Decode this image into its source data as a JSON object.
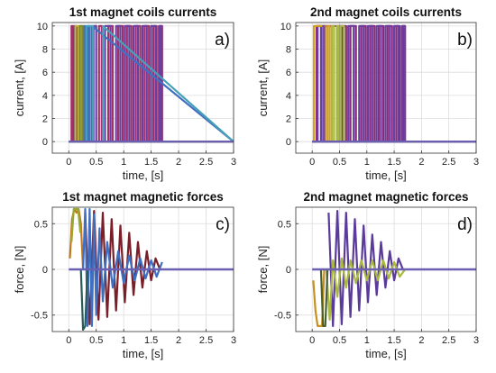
{
  "colors": {
    "grid": "#dcdcdc",
    "axis": "#333333",
    "zero": "#6a5fb0"
  },
  "chart_data": [
    {
      "type": "line",
      "title": "1st magnet coils currents",
      "panel_label": "a)",
      "xlabel": "time, [s]",
      "ylabel": "current, [A]",
      "xlim": [
        -0.3,
        3
      ],
      "ylim": [
        -1,
        10.3
      ],
      "xticks": [
        0,
        0.5,
        1,
        1.5,
        2,
        2.5,
        3
      ],
      "xticklabels": [
        "0",
        "0.5",
        "1",
        "1.5",
        "2",
        "2.5",
        "3"
      ],
      "yticks": [
        0,
        2,
        4,
        6,
        8,
        10
      ],
      "yticklabels": [
        "0",
        "2",
        "4",
        "6",
        "8",
        "10"
      ],
      "grid": true,
      "series": [
        {
          "color": "#a0306a",
          "x": [
            0,
            0.05,
            0.05,
            0.08,
            0.08,
            0.55,
            0.55,
            0.6,
            0.6,
            0.72,
            0.72,
            0.8,
            0.8,
            0.9,
            0.9,
            0.98,
            0.98,
            1.06,
            1.06,
            1.14,
            1.14,
            1.22,
            1.22,
            1.3,
            1.3,
            1.38,
            1.38,
            1.46,
            1.46,
            1.54,
            1.54,
            1.6,
            1.6,
            1.66,
            1.66,
            1.7,
            1.7,
            3
          ],
          "y": [
            0,
            0,
            10,
            10,
            0,
            0,
            10,
            10,
            0,
            0,
            10,
            10,
            0,
            0,
            10,
            10,
            0,
            0,
            10,
            10,
            0,
            0,
            10,
            10,
            0,
            0,
            10,
            10,
            0,
            0,
            10,
            10,
            0,
            0,
            10,
            10,
            0,
            0
          ]
        },
        {
          "color": "#6a3fa0",
          "x": [
            0,
            0.1,
            0.1,
            0.14,
            0.14,
            0.45,
            0.45,
            0.5,
            0.5,
            0.66,
            0.66,
            0.76,
            0.76,
            0.86,
            0.86,
            0.94,
            0.94,
            1.02,
            1.02,
            1.1,
            1.1,
            1.18,
            1.18,
            1.26,
            1.26,
            1.34,
            1.34,
            1.42,
            1.42,
            1.5,
            1.5,
            1.58,
            1.58,
            1.64,
            1.64,
            1.69,
            1.69,
            3
          ],
          "y": [
            0,
            0,
            10,
            10,
            0,
            0,
            10,
            10,
            0,
            0,
            10,
            10,
            0,
            0,
            10,
            10,
            0,
            0,
            10,
            10,
            0,
            0,
            10,
            10,
            0,
            0,
            10,
            10,
            0,
            0,
            10,
            10,
            0,
            0,
            10,
            10,
            0,
            0
          ]
        },
        {
          "color": "#c8b030",
          "x": [
            0,
            0.12,
            0.12,
            0.18,
            0.18,
            0.22,
            0.22,
            0.26,
            0.26,
            3
          ],
          "y": [
            0,
            0,
            10,
            10,
            0,
            0,
            10,
            10,
            0,
            0
          ]
        },
        {
          "color": "#4070c0",
          "x": [
            0,
            0.28,
            0.28,
            0.3,
            0.3,
            0.35,
            0.35,
            0.38,
            0.38,
            0.42,
            0.42,
            3
          ],
          "y": [
            0,
            0,
            10,
            10,
            0,
            0,
            10,
            10,
            0,
            0,
            10,
            0
          ]
        },
        {
          "color": "#48a0b8",
          "x": [
            0,
            0.32,
            0.32,
            0.44,
            0.44,
            0.62,
            0.62,
            3
          ],
          "y": [
            0,
            0,
            10,
            10,
            0,
            0,
            10,
            0
          ]
        },
        {
          "color": "#7a8a30",
          "x": [
            0,
            0.2,
            0.2,
            0.25,
            0.25,
            3
          ],
          "y": [
            0,
            0,
            10,
            10,
            0,
            0
          ]
        }
      ]
    },
    {
      "type": "line",
      "title": "2nd magnet coils currents",
      "panel_label": "b)",
      "xlabel": "time, [s]",
      "ylabel": "current, [A]",
      "xlim": [
        -0.3,
        3
      ],
      "ylim": [
        -1,
        10.3
      ],
      "xticks": [
        0,
        0.5,
        1,
        1.5,
        2,
        2.5,
        3
      ],
      "xticklabels": [
        "0",
        "0.5",
        "1",
        "1.5",
        "2",
        "2.5",
        "3"
      ],
      "yticks": [
        0,
        2,
        4,
        6,
        8,
        10
      ],
      "yticklabels": [
        "0",
        "2",
        "4",
        "6",
        "8",
        "10"
      ],
      "grid": true,
      "series": [
        {
          "color": "#8a2a7a",
          "x": [
            0,
            0.08,
            0.08,
            0.62,
            0.62,
            0.7,
            0.7,
            0.8,
            0.8,
            0.9,
            0.9,
            0.98,
            0.98,
            1.06,
            1.06,
            1.14,
            1.14,
            1.22,
            1.22,
            1.3,
            1.3,
            1.38,
            1.38,
            1.46,
            1.46,
            1.54,
            1.54,
            1.6,
            1.6,
            1.66,
            1.66,
            1.7,
            1.7,
            3
          ],
          "y": [
            0,
            0,
            10,
            10,
            0,
            0,
            10,
            10,
            0,
            0,
            10,
            10,
            0,
            0,
            10,
            10,
            0,
            0,
            10,
            10,
            0,
            0,
            10,
            10,
            0,
            0,
            10,
            10,
            0,
            0,
            10,
            10,
            0,
            0
          ]
        },
        {
          "color": "#6a3fa0",
          "x": [
            0,
            0.1,
            0.1,
            0.16,
            0.16,
            0.5,
            0.5,
            0.55,
            0.55,
            0.66,
            0.66,
            0.76,
            0.76,
            0.86,
            0.86,
            0.94,
            0.94,
            1.02,
            1.02,
            1.1,
            1.1,
            1.18,
            1.18,
            1.26,
            1.26,
            1.34,
            1.34,
            1.42,
            1.42,
            1.5,
            1.5,
            1.58,
            1.58,
            1.64,
            1.64,
            1.69,
            1.69,
            3
          ],
          "y": [
            0,
            0,
            10,
            10,
            0,
            0,
            10,
            10,
            0,
            0,
            10,
            10,
            0,
            0,
            10,
            10,
            0,
            0,
            10,
            10,
            0,
            0,
            10,
            10,
            0,
            0,
            10,
            10,
            0,
            0,
            10,
            10,
            0,
            0,
            10,
            10,
            0,
            0
          ]
        },
        {
          "color": "#d0a020",
          "x": [
            0,
            0.03,
            0.03,
            0.24,
            0.24,
            0.28,
            0.28,
            0.32,
            0.32,
            3
          ],
          "y": [
            0,
            0,
            10,
            10,
            0,
            0,
            10,
            10,
            0,
            0
          ]
        },
        {
          "color": "#a8b840",
          "x": [
            0,
            0.36,
            0.36,
            0.4,
            0.4,
            0.45,
            0.45,
            0.48,
            0.48,
            0.52,
            0.52,
            0.58,
            0.58,
            3
          ],
          "y": [
            0,
            0,
            10,
            10,
            0,
            0,
            10,
            10,
            0,
            0,
            10,
            10,
            0,
            0
          ]
        },
        {
          "color": "#7a4aa8",
          "x": [
            0,
            0.2,
            0.2,
            0.22,
            0.22,
            3
          ],
          "y": [
            0,
            0,
            10,
            10,
            0,
            0
          ]
        }
      ]
    },
    {
      "type": "line",
      "title": "1st magnet magnetic forces",
      "panel_label": "c)",
      "xlabel": "time, [s]",
      "ylabel": "force, [N]",
      "xlim": [
        -0.3,
        3
      ],
      "ylim": [
        -0.68,
        0.68
      ],
      "xticks": [
        0,
        0.5,
        1,
        1.5,
        2,
        2.5,
        3
      ],
      "xticklabels": [
        "0",
        "0.5",
        "1",
        "1.5",
        "2",
        "2.5",
        "3"
      ],
      "yticks": [
        -0.5,
        0,
        0.5
      ],
      "yticklabels": [
        "-0.5",
        "0",
        "0.5"
      ],
      "grid": true,
      "series": [
        {
          "color": "#7a1f2a",
          "x": [
            0.3,
            0.38,
            0.46,
            0.54,
            0.62,
            0.7,
            0.78,
            0.86,
            0.94,
            1.02,
            1.1,
            1.18,
            1.26,
            1.34,
            1.42,
            1.5,
            1.58,
            1.66
          ],
          "y": [
            0.62,
            -0.6,
            0.64,
            -0.55,
            0.62,
            -0.52,
            0.55,
            -0.45,
            0.48,
            -0.36,
            0.4,
            -0.28,
            0.3,
            -0.2,
            0.2,
            -0.12,
            0.12,
            0
          ]
        },
        {
          "color": "#c07820",
          "x": [
            0.02,
            0.06,
            0.1,
            0.14,
            0.18,
            0.22,
            0.26
          ],
          "y": [
            0.12,
            0.55,
            0.66,
            0.62,
            0.66,
            0.5,
            0
          ]
        },
        {
          "color": "#3f6fc0",
          "x": [
            0.26,
            0.3,
            0.34,
            0.38,
            0.42,
            0.46,
            0.5,
            0.56,
            0.62,
            0.7,
            0.8,
            0.9,
            1.0,
            1.1,
            1.2,
            1.3,
            1.4,
            1.5,
            1.6,
            1.7
          ],
          "y": [
            0,
            0.66,
            -0.62,
            0.66,
            -0.62,
            0.6,
            -0.5,
            0.45,
            -0.35,
            0.3,
            -0.2,
            0.2,
            -0.15,
            0.15,
            -0.12,
            0.12,
            -0.1,
            0.1,
            -0.08,
            0.08
          ]
        },
        {
          "color": "#9aaa30",
          "x": [
            0.05,
            0.09,
            0.13,
            0.17,
            0.21
          ],
          "y": [
            0.3,
            0.66,
            0.66,
            0.66,
            0.4
          ]
        },
        {
          "color": "#2a5a5a",
          "x": [
            0.22,
            0.26,
            0.3,
            0.34
          ],
          "y": [
            0,
            -0.66,
            -0.62,
            0
          ]
        }
      ]
    },
    {
      "type": "line",
      "title": "2nd magnet magnetic forces",
      "panel_label": "d)",
      "xlabel": "time, [s]",
      "ylabel": "force, [N]",
      "xlim": [
        -0.3,
        3
      ],
      "ylim": [
        -0.68,
        0.68
      ],
      "xticks": [
        0,
        0.5,
        1,
        1.5,
        2,
        2.5,
        3
      ],
      "xticklabels": [
        "0",
        "0.5",
        "1",
        "1.5",
        "2",
        "2.5",
        "3"
      ],
      "yticks": [
        -0.5,
        0,
        0.5
      ],
      "yticklabels": [
        "-0.5",
        "0",
        "0.5"
      ],
      "grid": true,
      "series": [
        {
          "color": "#5a3a9a",
          "x": [
            0.3,
            0.38,
            0.46,
            0.54,
            0.62,
            0.7,
            0.78,
            0.86,
            0.94,
            1.02,
            1.1,
            1.18,
            1.26,
            1.34,
            1.42,
            1.5,
            1.58,
            1.66
          ],
          "y": [
            0.62,
            -0.62,
            0.64,
            -0.6,
            0.62,
            -0.52,
            0.55,
            -0.45,
            0.48,
            -0.36,
            0.38,
            -0.28,
            0.3,
            -0.2,
            0.2,
            -0.12,
            0.12,
            0
          ]
        },
        {
          "color": "#c89020",
          "x": [
            0.02,
            0.06,
            0.1,
            0.14,
            0.18,
            0.22
          ],
          "y": [
            -0.12,
            -0.45,
            -0.62,
            -0.62,
            -0.62,
            0
          ]
        },
        {
          "color": "#a8b840",
          "x": [
            0.26,
            0.32,
            0.38,
            0.46,
            0.54,
            0.62,
            0.7,
            0.8,
            0.9,
            1.0,
            1.1,
            1.2,
            1.3,
            1.4,
            1.5,
            1.6,
            1.7
          ],
          "y": [
            0,
            -0.55,
            0.1,
            -0.3,
            0.12,
            -0.2,
            0.1,
            -0.15,
            0.1,
            -0.12,
            0.1,
            -0.12,
            0.1,
            -0.1,
            0.08,
            -0.08,
            0
          ]
        },
        {
          "color": "#4a6030",
          "x": [
            0.16,
            0.2,
            0.24,
            0.28
          ],
          "y": [
            0,
            -0.62,
            -0.62,
            0
          ]
        }
      ]
    }
  ]
}
